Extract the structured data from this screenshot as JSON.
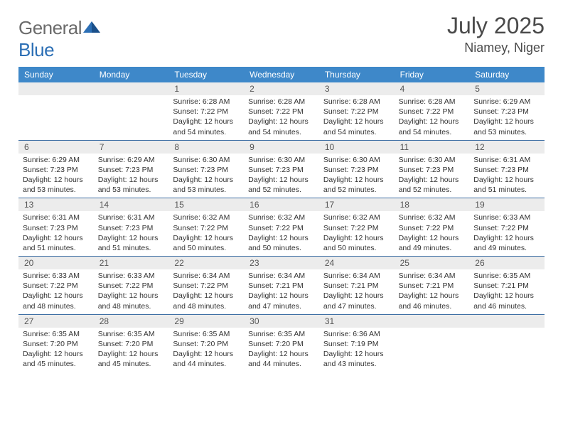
{
  "brand": {
    "word1": "General",
    "word2": "Blue"
  },
  "title": "July 2025",
  "location": "Niamey, Niger",
  "colors": {
    "header_bg": "#3e88c9",
    "header_text": "#ffffff",
    "daynum_bg": "#ececec",
    "week_border": "#3e6fa5",
    "text": "#333333",
    "title_text": "#4a4a4a",
    "logo_gray": "#6b6b6b",
    "logo_blue": "#2c6fb5"
  },
  "day_names": [
    "Sunday",
    "Monday",
    "Tuesday",
    "Wednesday",
    "Thursday",
    "Friday",
    "Saturday"
  ],
  "weeks": [
    [
      {
        "n": null
      },
      {
        "n": null
      },
      {
        "n": 1,
        "sr": "6:28 AM",
        "ss": "7:22 PM",
        "dl": "12 hours and 54 minutes."
      },
      {
        "n": 2,
        "sr": "6:28 AM",
        "ss": "7:22 PM",
        "dl": "12 hours and 54 minutes."
      },
      {
        "n": 3,
        "sr": "6:28 AM",
        "ss": "7:22 PM",
        "dl": "12 hours and 54 minutes."
      },
      {
        "n": 4,
        "sr": "6:28 AM",
        "ss": "7:22 PM",
        "dl": "12 hours and 54 minutes."
      },
      {
        "n": 5,
        "sr": "6:29 AM",
        "ss": "7:23 PM",
        "dl": "12 hours and 53 minutes."
      }
    ],
    [
      {
        "n": 6,
        "sr": "6:29 AM",
        "ss": "7:23 PM",
        "dl": "12 hours and 53 minutes."
      },
      {
        "n": 7,
        "sr": "6:29 AM",
        "ss": "7:23 PM",
        "dl": "12 hours and 53 minutes."
      },
      {
        "n": 8,
        "sr": "6:30 AM",
        "ss": "7:23 PM",
        "dl": "12 hours and 53 minutes."
      },
      {
        "n": 9,
        "sr": "6:30 AM",
        "ss": "7:23 PM",
        "dl": "12 hours and 52 minutes."
      },
      {
        "n": 10,
        "sr": "6:30 AM",
        "ss": "7:23 PM",
        "dl": "12 hours and 52 minutes."
      },
      {
        "n": 11,
        "sr": "6:30 AM",
        "ss": "7:23 PM",
        "dl": "12 hours and 52 minutes."
      },
      {
        "n": 12,
        "sr": "6:31 AM",
        "ss": "7:23 PM",
        "dl": "12 hours and 51 minutes."
      }
    ],
    [
      {
        "n": 13,
        "sr": "6:31 AM",
        "ss": "7:23 PM",
        "dl": "12 hours and 51 minutes."
      },
      {
        "n": 14,
        "sr": "6:31 AM",
        "ss": "7:23 PM",
        "dl": "12 hours and 51 minutes."
      },
      {
        "n": 15,
        "sr": "6:32 AM",
        "ss": "7:22 PM",
        "dl": "12 hours and 50 minutes."
      },
      {
        "n": 16,
        "sr": "6:32 AM",
        "ss": "7:22 PM",
        "dl": "12 hours and 50 minutes."
      },
      {
        "n": 17,
        "sr": "6:32 AM",
        "ss": "7:22 PM",
        "dl": "12 hours and 50 minutes."
      },
      {
        "n": 18,
        "sr": "6:32 AM",
        "ss": "7:22 PM",
        "dl": "12 hours and 49 minutes."
      },
      {
        "n": 19,
        "sr": "6:33 AM",
        "ss": "7:22 PM",
        "dl": "12 hours and 49 minutes."
      }
    ],
    [
      {
        "n": 20,
        "sr": "6:33 AM",
        "ss": "7:22 PM",
        "dl": "12 hours and 48 minutes."
      },
      {
        "n": 21,
        "sr": "6:33 AM",
        "ss": "7:22 PM",
        "dl": "12 hours and 48 minutes."
      },
      {
        "n": 22,
        "sr": "6:34 AM",
        "ss": "7:22 PM",
        "dl": "12 hours and 48 minutes."
      },
      {
        "n": 23,
        "sr": "6:34 AM",
        "ss": "7:21 PM",
        "dl": "12 hours and 47 minutes."
      },
      {
        "n": 24,
        "sr": "6:34 AM",
        "ss": "7:21 PM",
        "dl": "12 hours and 47 minutes."
      },
      {
        "n": 25,
        "sr": "6:34 AM",
        "ss": "7:21 PM",
        "dl": "12 hours and 46 minutes."
      },
      {
        "n": 26,
        "sr": "6:35 AM",
        "ss": "7:21 PM",
        "dl": "12 hours and 46 minutes."
      }
    ],
    [
      {
        "n": 27,
        "sr": "6:35 AM",
        "ss": "7:20 PM",
        "dl": "12 hours and 45 minutes."
      },
      {
        "n": 28,
        "sr": "6:35 AM",
        "ss": "7:20 PM",
        "dl": "12 hours and 45 minutes."
      },
      {
        "n": 29,
        "sr": "6:35 AM",
        "ss": "7:20 PM",
        "dl": "12 hours and 44 minutes."
      },
      {
        "n": 30,
        "sr": "6:35 AM",
        "ss": "7:20 PM",
        "dl": "12 hours and 44 minutes."
      },
      {
        "n": 31,
        "sr": "6:36 AM",
        "ss": "7:19 PM",
        "dl": "12 hours and 43 minutes."
      },
      {
        "n": null
      },
      {
        "n": null
      }
    ]
  ],
  "labels": {
    "sunrise": "Sunrise:",
    "sunset": "Sunset:",
    "daylight": "Daylight:"
  }
}
